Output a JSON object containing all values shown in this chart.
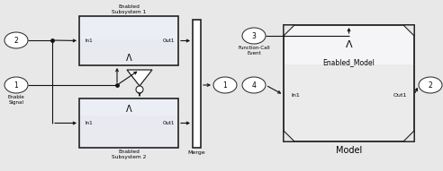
{
  "bg_color": "#e8e8e8",
  "block_fill": "#d8d8d8",
  "block_fill2": "#e8eaf0",
  "white": "#ffffff",
  "border": "#222222",
  "lc": "#111111",
  "tc": "#000000",
  "fig_w": 4.92,
  "fig_h": 1.91,
  "dpi": 100,
  "ss1_label": "Enabled\nSubsystem 1",
  "ss2_label": "Enabled\nSubsystem 2",
  "merge_label": "Merge",
  "in1_label": "In1",
  "out1_label": "Out1",
  "port2_label": "2",
  "port1_label": "1",
  "enable_label": "Enable\nSignal",
  "fc_label": "Function-Call\nEvent",
  "port3_label": "3",
  "port4_label": "4",
  "model_label": "Enabled_Model",
  "model_sub": "Model",
  "lambda_char": "Ʌ"
}
